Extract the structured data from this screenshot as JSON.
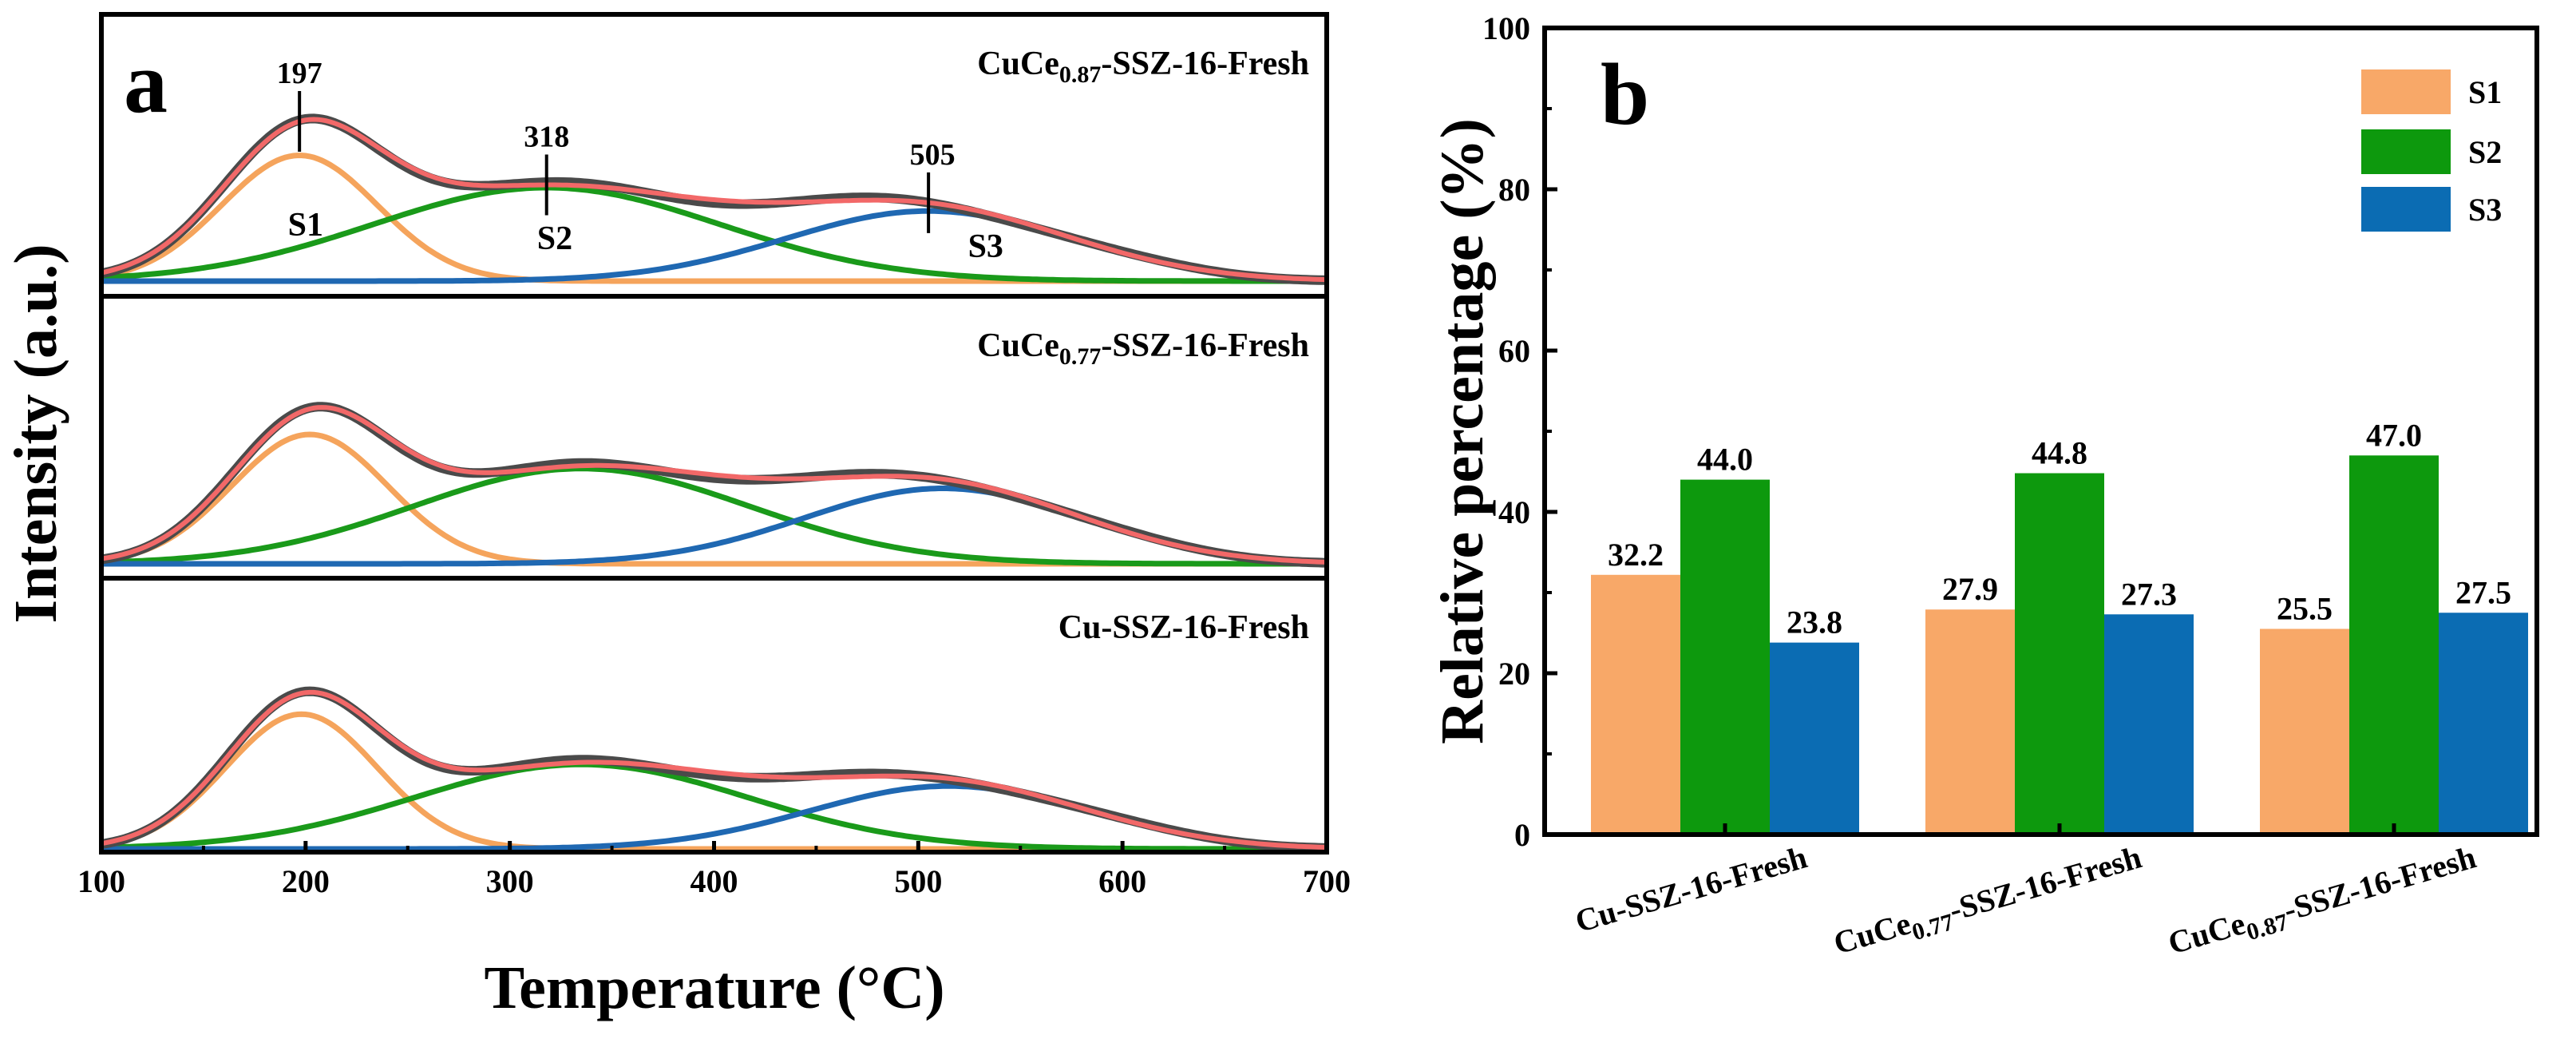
{
  "chart_data": [
    {
      "type": "line",
      "panel": "a",
      "xlabel": "Temperature (°C)",
      "ylabel": "Intensity (a.u.)",
      "xlim": [
        100,
        700
      ],
      "xticks": [
        "100",
        "200",
        "300",
        "400",
        "500",
        "600",
        "700"
      ],
      "colors": {
        "S1": "#f5a45c",
        "S2": "#1a9a1a",
        "S3": "#1f68b2",
        "measured": "#4a4a4a",
        "fit": "#f26868"
      },
      "subplots": [
        {
          "sample": {
            "base": "CuCe",
            "sub": "0.87",
            "rest": "-SSZ-16-Fresh"
          },
          "components": [
            {
              "name": "S1",
              "center": 197,
              "amplitude": 0.7,
              "sigma": 38
            },
            {
              "name": "S2",
              "center": 318,
              "amplitude": 0.52,
              "sigma": 85
            },
            {
              "name": "S3",
              "center": 505,
              "amplitude": 0.39,
              "sigma": 70
            }
          ],
          "peak_labels": [
            {
              "value": "197",
              "x": 197
            },
            {
              "value": "318",
              "x": 318
            },
            {
              "value": "505",
              "x": 505
            }
          ],
          "component_labels": [
            {
              "text": "S1",
              "x": 200
            },
            {
              "text": "S2",
              "x": 322
            },
            {
              "text": "S3",
              "x": 533
            }
          ]
        },
        {
          "sample": {
            "base": "CuCe",
            "sub": "0.77",
            "rest": "-SSZ-16-Fresh"
          },
          "components": [
            {
              "name": "S1",
              "center": 202,
              "amplitude": 0.72,
              "sigma": 38
            },
            {
              "name": "S2",
              "center": 335,
              "amplitude": 0.53,
              "sigma": 82
            },
            {
              "name": "S3",
              "center": 512,
              "amplitude": 0.42,
              "sigma": 68
            }
          ]
        },
        {
          "sample": {
            "base": "Cu",
            "sub": "",
            "rest": "-SSZ-16-Fresh"
          },
          "components": [
            {
              "name": "S1",
              "center": 198,
              "amplitude": 0.75,
              "sigma": 37
            },
            {
              "name": "S2",
              "center": 335,
              "amplitude": 0.47,
              "sigma": 82
            },
            {
              "name": "S3",
              "center": 515,
              "amplitude": 0.35,
              "sigma": 68
            }
          ]
        }
      ]
    },
    {
      "type": "bar",
      "panel": "b",
      "ylabel": "Relative percentage (%)",
      "ylim": [
        0,
        100
      ],
      "yticks": [
        "0",
        "20",
        "40",
        "60",
        "80",
        "100"
      ],
      "categories": [
        {
          "base": "Cu",
          "sub": "",
          "rest": "-SSZ-16-Fresh"
        },
        {
          "base": "CuCe",
          "sub": "0.77",
          "rest": "-SSZ-16-Fresh"
        },
        {
          "base": "CuCe",
          "sub": "0.87",
          "rest": "-SSZ-16-Fresh"
        }
      ],
      "series": [
        {
          "name": "S1",
          "color": "#f8a868",
          "values": [
            32.2,
            27.9,
            25.5
          ],
          "labels": [
            "32.2",
            "27.9",
            "25.5"
          ]
        },
        {
          "name": "S2",
          "color": "#0d990d",
          "values": [
            44.0,
            44.8,
            47.0
          ],
          "labels": [
            "44.0",
            "44.8",
            "47.0"
          ]
        },
        {
          "name": "S3",
          "color": "#0b6cb3",
          "values": [
            23.8,
            27.3,
            27.5
          ],
          "labels": [
            "23.8",
            "27.3",
            "27.5"
          ]
        }
      ],
      "legend": "top-right"
    }
  ]
}
